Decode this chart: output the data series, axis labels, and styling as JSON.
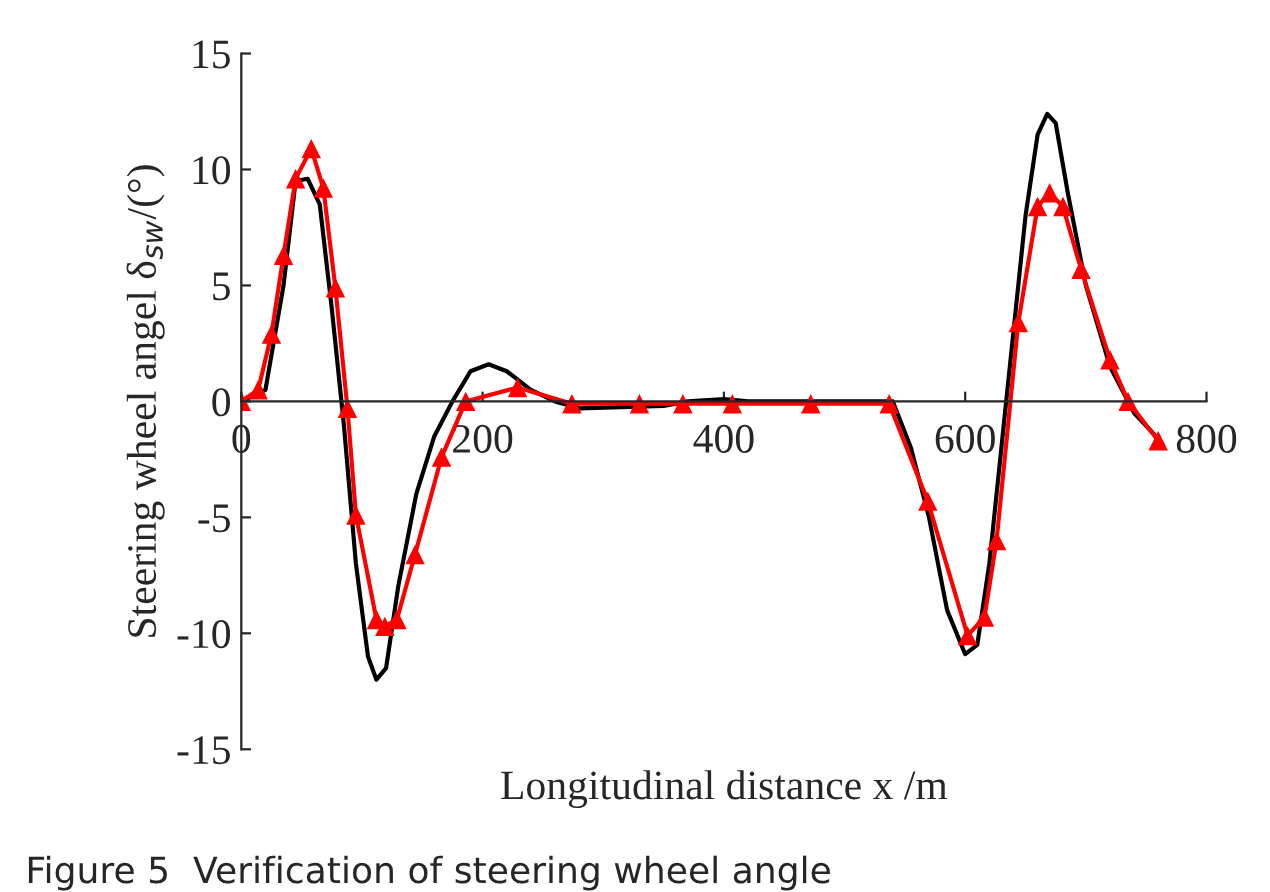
{
  "chart_data": {
    "type": "line",
    "xlabel": "Longitudinal distance x /m",
    "ylabel": "Steering wheel angel δ$_{sw}$/(°)",
    "annotations": [
      "Figure 5  Verification of steering wheel angle"
    ],
    "xlim": [
      0,
      800
    ],
    "xticks": [
      0,
      200,
      400,
      600,
      800
    ],
    "ylim": [
      -15,
      15
    ],
    "yticks": [
      -15,
      -10,
      -5,
      0,
      5,
      10,
      15
    ],
    "grid": false,
    "series": [
      {
        "color": "#000000",
        "marker": "none",
        "x": [
          0,
          20,
          35,
          45,
          55,
          65,
          75,
          85,
          95,
          105,
          112,
          120,
          130,
          145,
          160,
          175,
          190,
          205,
          220,
          240,
          260,
          280,
          350,
          370,
          400,
          420,
          500,
          540,
          555,
          570,
          585,
          600,
          610,
          620,
          630,
          640,
          650,
          660,
          668,
          675,
          685,
          700,
          720,
          740,
          758
        ],
        "values": [
          0,
          0.5,
          5,
          9.5,
          9.6,
          8.5,
          4,
          -1,
          -7,
          -11,
          -12,
          -11.5,
          -8,
          -4,
          -1.5,
          0,
          1.3,
          1.6,
          1.3,
          0.5,
          0,
          -0.3,
          -0.2,
          0,
          0.1,
          0,
          0,
          0,
          -2,
          -5,
          -9,
          -10.9,
          -10.5,
          -7,
          -2,
          3,
          8,
          11.5,
          12.4,
          12,
          9,
          5,
          1.5,
          -0.5,
          -1.5
        ]
      },
      {
        "color": "#ff0000",
        "marker": "triangle",
        "x": [
          0,
          14,
          25,
          35,
          45,
          58,
          68,
          78,
          88,
          95,
          112,
          119,
          129,
          144,
          166,
          186,
          229,
          274,
          330,
          366,
          407,
          472,
          537,
          569,
          602,
          616,
          626,
          644,
          660,
          670,
          681,
          696,
          720,
          735,
          760
        ],
        "values": [
          0,
          0.5,
          2.9,
          6.3,
          9.6,
          10.9,
          9.2,
          4.9,
          -0.3,
          -4.9,
          -9.4,
          -9.7,
          -9.4,
          -6.6,
          -2.4,
          0,
          0.6,
          -0.1,
          -0.1,
          -0.1,
          -0.1,
          -0.1,
          -0.1,
          -4.3,
          -10.1,
          -9.3,
          -6,
          3.4,
          8.4,
          9,
          8.4,
          5.7,
          1.8,
          0,
          -1.7
        ]
      }
    ]
  }
}
